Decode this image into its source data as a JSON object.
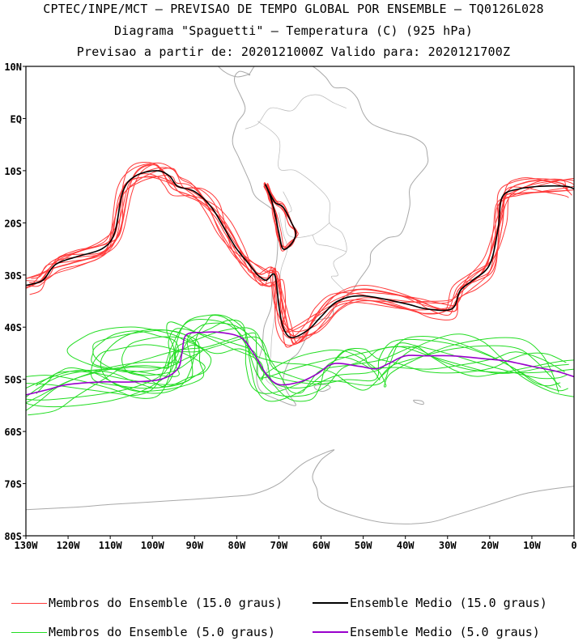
{
  "header": {
    "line1": "CPTEC/INPE/MCT – PREVISAO DE TEMPO GLOBAL POR ENSEMBLE – TQ0126L028",
    "line2": "Diagrama \"Spaguetti\" – Temperatura (C) (925 hPa)",
    "line3": "Previsao a partir de: 2020121000Z  Valido para: 2020121700Z"
  },
  "map": {
    "lon_range": [
      -130,
      0
    ],
    "lat_range": [
      -80,
      10
    ],
    "lat_ticks": [
      "10N",
      "EQ",
      "10S",
      "20S",
      "30S",
      "40S",
      "50S",
      "60S",
      "70S",
      "80S"
    ],
    "lon_ticks": [
      "130W",
      "120W",
      "110W",
      "100W",
      "90W",
      "80W",
      "70W",
      "60W",
      "50W",
      "40W",
      "30W",
      "20W",
      "10W",
      "0"
    ]
  },
  "legend": {
    "members_15_label": "Membros do Ensemble (15.0 graus)",
    "mean_15_label": "Ensemble Medio (15.0 graus)",
    "members_5_label": "Membros do Ensemble (5.0 graus)",
    "mean_5_label": "Ensemble Medio (5.0 graus)"
  },
  "colors": {
    "members_15": "#ff3a3a",
    "mean_15": "#000000",
    "members_5": "#22dd22",
    "mean_5": "#9900cc",
    "coastline": "#a8a8a8"
  },
  "contours": {
    "mean_15": [
      [
        -130,
        -32
      ],
      [
        -126,
        -31
      ],
      [
        -123,
        -28
      ],
      [
        -118,
        -26.5
      ],
      [
        -112,
        -25
      ],
      [
        -109,
        -22
      ],
      [
        -107,
        -14
      ],
      [
        -104,
        -11
      ],
      [
        -99,
        -10
      ],
      [
        -96,
        -11
      ],
      [
        -94,
        -13
      ],
      [
        -90,
        -14
      ],
      [
        -86,
        -17
      ],
      [
        -83,
        -21
      ],
      [
        -80,
        -25
      ],
      [
        -77,
        -28
      ],
      [
        -75,
        -30
      ],
      [
        -73,
        -31
      ],
      [
        -71,
        -30
      ],
      [
        -70,
        -36
      ],
      [
        -69,
        -40
      ],
      [
        -67,
        -42
      ],
      [
        -63,
        -40.5
      ],
      [
        -60,
        -38
      ],
      [
        -56,
        -35
      ],
      [
        -50,
        -34
      ],
      [
        -40,
        -35.5
      ],
      [
        -35,
        -36.5
      ],
      [
        -29,
        -36.5
      ],
      [
        -27,
        -33
      ],
      [
        -24,
        -31
      ],
      [
        -20,
        -28
      ],
      [
        -18,
        -21
      ],
      [
        -17,
        -15
      ],
      [
        -13,
        -13.5
      ],
      [
        -8,
        -13
      ],
      [
        -2,
        -13
      ],
      [
        0,
        -13.5
      ]
    ],
    "mean_15_peru": [
      [
        -73,
        -13
      ],
      [
        -71,
        -16
      ],
      [
        -69,
        -17
      ],
      [
        -67,
        -20
      ],
      [
        -66,
        -22
      ],
      [
        -67,
        -24
      ],
      [
        -69,
        -25
      ],
      [
        -70,
        -22
      ],
      [
        -71,
        -18
      ],
      [
        -72,
        -15
      ],
      [
        -73,
        -13
      ]
    ],
    "mean_5": [
      [
        -130,
        -53
      ],
      [
        -125,
        -52
      ],
      [
        -120,
        -51
      ],
      [
        -112,
        -50.5
      ],
      [
        -105,
        -50.5
      ],
      [
        -98,
        -50
      ],
      [
        -94,
        -48
      ],
      [
        -93,
        -45
      ],
      [
        -92,
        -41.5
      ],
      [
        -88,
        -41
      ],
      [
        -84,
        -41
      ],
      [
        -79,
        -42
      ],
      [
        -76,
        -45
      ],
      [
        -73,
        -49
      ],
      [
        -70,
        -51
      ],
      [
        -65,
        -50.5
      ],
      [
        -61,
        -49
      ],
      [
        -57,
        -47
      ],
      [
        -51,
        -47.5
      ],
      [
        -47,
        -48
      ],
      [
        -44,
        -47
      ],
      [
        -40,
        -45.5
      ],
      [
        -35,
        -45.5
      ],
      [
        -29,
        -45.5
      ],
      [
        -22,
        -46
      ],
      [
        -16,
        -46.5
      ],
      [
        -10,
        -47.5
      ],
      [
        -4,
        -48.5
      ],
      [
        0,
        -49.5
      ]
    ]
  }
}
